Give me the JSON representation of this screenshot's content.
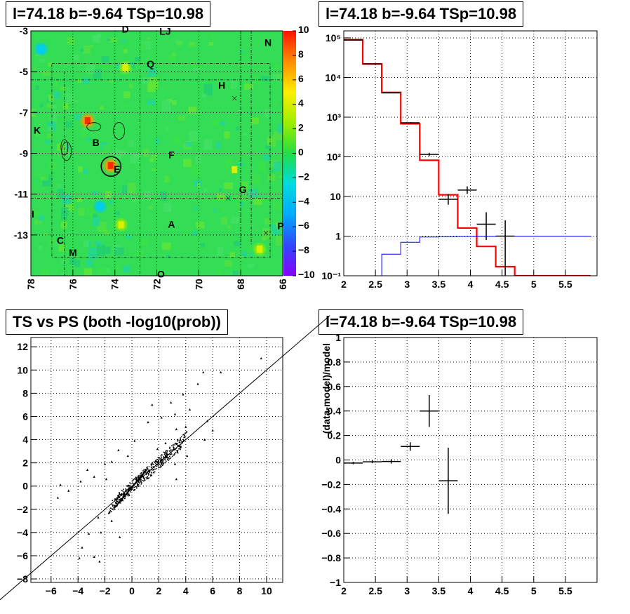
{
  "titles": {
    "map": "l=74.18 b=-9.64 TSp=10.98",
    "spectrum": "l=74.18 b=-9.64 TSp=10.98",
    "scatter": "TS vs PS (both -log10(prob))",
    "residual": "l=74.18 b=-9.64 TSp=10.98"
  },
  "chart_data": [
    {
      "type": "heatmap",
      "title": "l=74.18 b=-9.64 TSp=10.98",
      "x_ticks": [
        "78",
        "76",
        "74",
        "72",
        "70",
        "68",
        "66"
      ],
      "y_ticks": [
        "-3",
        "-5",
        "-7",
        "-9",
        "-11",
        "-13"
      ],
      "xlim": [
        78,
        66
      ],
      "ylim": [
        -15,
        -3
      ],
      "colorbar": {
        "range": [
          -10,
          10
        ],
        "ticks": [
          "10",
          "8",
          "6",
          "4",
          "2",
          "0",
          "−2",
          "−4",
          "−6",
          "−8",
          "−10"
        ]
      },
      "source_labels": [
        {
          "text": "D",
          "l": 73.5,
          "b": -2.95
        },
        {
          "text": "LJ",
          "l": 71.6,
          "b": -3.05
        },
        {
          "text": "N",
          "l": 66.7,
          "b": -3.6
        },
        {
          "text": "Q",
          "l": 72.3,
          "b": -4.65
        },
        {
          "text": "H",
          "l": 68.9,
          "b": -5.7
        },
        {
          "text": "K",
          "l": 77.7,
          "b": -7.9
        },
        {
          "text": "B",
          "l": 74.9,
          "b": -8.5
        },
        {
          "text": "F",
          "l": 71.3,
          "b": -9.1
        },
        {
          "text": "E",
          "l": 73.9,
          "b": -9.8
        },
        {
          "text": "G",
          "l": 67.9,
          "b": -10.8
        },
        {
          "text": "I",
          "l": 77.9,
          "b": -12.0
        },
        {
          "text": "A",
          "l": 71.3,
          "b": -12.5
        },
        {
          "text": "P",
          "l": 66.1,
          "b": -12.6
        },
        {
          "text": "C",
          "l": 76.6,
          "b": -13.3
        },
        {
          "text": "M",
          "l": 76.0,
          "b": -13.9
        },
        {
          "text": "O",
          "l": 71.8,
          "b": -14.95
        }
      ],
      "hotspots": [
        {
          "l": 75.3,
          "b": -7.4,
          "value": 8
        },
        {
          "l": 74.2,
          "b": -9.6,
          "value": 8
        },
        {
          "l": 73.5,
          "b": -4.8,
          "value": 4
        },
        {
          "l": 73.7,
          "b": -12.5,
          "value": 4
        },
        {
          "l": 67.1,
          "b": -13.7,
          "value": 4
        },
        {
          "l": 74.7,
          "b": -11.6,
          "value": -3
        },
        {
          "l": 77.5,
          "b": -3.9,
          "value": -3
        },
        {
          "l": 68.3,
          "b": -9.8,
          "value": 3
        }
      ],
      "marker_circle": {
        "l": 74.18,
        "b": -9.64
      }
    },
    {
      "type": "line",
      "title": "l=74.18 b=-9.64 TSp=10.98",
      "yscale": "log",
      "xlim": [
        2,
        6
      ],
      "ylim": [
        0.1,
        150000
      ],
      "x_ticks": [
        "2",
        "2.5",
        "3",
        "3.5",
        "4",
        "4.5",
        "5",
        "5.5"
      ],
      "y_ticks": [
        "10⁻¹",
        "1",
        "10",
        "10²",
        "10³",
        "10⁴",
        "10⁵"
      ],
      "bin_edges": [
        2.0,
        2.3,
        2.6,
        2.9,
        3.2,
        3.5,
        3.8,
        4.1,
        4.4,
        4.7,
        5.0,
        5.3,
        5.6,
        5.9
      ],
      "series": [
        {
          "kind": "model",
          "color": "#ff0000",
          "values": [
            90000,
            22000,
            4200,
            680,
            82,
            11,
            1.6,
            0.55,
            0.17,
            0.1,
            0.1,
            0.1,
            0.1
          ]
        },
        {
          "kind": "background",
          "color": "#0000ff",
          "values": [
            0.1,
            0.1,
            0.35,
            0.7,
            0.95,
            0.97,
            0.98,
            0.99,
            1.0,
            1.0,
            1.0,
            1.0,
            1.0
          ]
        }
      ],
      "data_points": [
        {
          "x": 2.15,
          "y": 88000,
          "lo": 87000,
          "hi": 89000
        },
        {
          "x": 2.45,
          "y": 22000,
          "lo": 21500,
          "hi": 22500
        },
        {
          "x": 2.75,
          "y": 4100,
          "lo": 4000,
          "hi": 4200
        },
        {
          "x": 3.05,
          "y": 720,
          "lo": 690,
          "hi": 750
        },
        {
          "x": 3.35,
          "y": 115,
          "lo": 104,
          "hi": 126
        },
        {
          "x": 3.65,
          "y": 8.5,
          "lo": 6.2,
          "hi": 11.5
        },
        {
          "x": 3.95,
          "y": 14.5,
          "lo": 11.6,
          "hi": 18
        },
        {
          "x": 4.25,
          "y": 2,
          "lo": 0.8,
          "hi": 4
        },
        {
          "x": 4.55,
          "y": 1,
          "lo": 0.1,
          "hi": 2.5
        }
      ]
    },
    {
      "type": "scatter",
      "title": "TS vs PS (both -log10(prob))",
      "xlim": [
        -7.5,
        11.2
      ],
      "ylim": [
        -8.3,
        12.8
      ],
      "x_ticks": [
        "−6",
        "−4",
        "−2",
        "0",
        "2",
        "4",
        "6",
        "8",
        "10"
      ],
      "y_ticks": [
        "−8",
        "−6",
        "−4",
        "−2",
        "0",
        "2",
        "4",
        "6",
        "8",
        "10",
        "12"
      ],
      "reference_line": {
        "slope": 1,
        "intercept": 0
      },
      "outliers": [
        [
          9.6,
          11.0
        ],
        [
          6.6,
          9.8
        ],
        [
          5.3,
          9.8
        ],
        [
          4.9,
          8.8
        ],
        [
          3.8,
          7.9
        ],
        [
          2.9,
          7.2
        ],
        [
          1.5,
          7.0
        ],
        [
          4.3,
          6.6
        ],
        [
          3.2,
          6.2
        ],
        [
          5.6,
          5.6
        ],
        [
          2.2,
          5.9
        ],
        [
          4.0,
          5.1
        ],
        [
          3.3,
          4.9
        ],
        [
          1.2,
          5.5
        ],
        [
          2.5,
          3.7
        ],
        [
          3.6,
          4.0
        ],
        [
          1.9,
          3.2
        ],
        [
          3.4,
          2.9
        ],
        [
          4.1,
          2.6
        ],
        [
          3.2,
          1.9
        ],
        [
          3.3,
          0.6
        ],
        [
          -3.3,
          1.4
        ],
        [
          -3.8,
          0.4
        ],
        [
          -2.0,
          1.9
        ],
        [
          -5.5,
          -1.0
        ],
        [
          -5.3,
          0.1
        ],
        [
          -4.7,
          -0.4
        ],
        [
          -2.8,
          0.8
        ],
        [
          -2.5,
          -2.7
        ],
        [
          -2.3,
          -4.0
        ],
        [
          -3.2,
          -4.1
        ],
        [
          -3.7,
          -5.3
        ],
        [
          -2.8,
          -6.1
        ],
        [
          -3.9,
          -6.2
        ],
        [
          -2.4,
          -6.5
        ],
        [
          -1.5,
          -3.0
        ],
        [
          -0.9,
          -4.4
        ],
        [
          -1.7,
          -2.3
        ],
        [
          0.2,
          3.9
        ],
        [
          -1.0,
          3.1
        ],
        [
          -0.3,
          2.6
        ],
        [
          -1.9,
          0.6
        ],
        [
          -1.5,
          2.1
        ],
        [
          5.4,
          4.0
        ],
        [
          6.0,
          4.8
        ]
      ]
    },
    {
      "type": "scatter",
      "title": "l=74.18 b=-9.64 TSp=10.98",
      "ylabel": "(data-model)/model",
      "xlim": [
        2,
        6
      ],
      "ylim": [
        -1,
        1
      ],
      "x_ticks": [
        "2",
        "2.5",
        "3",
        "3.5",
        "4",
        "4.5",
        "5",
        "5.5"
      ],
      "y_ticks": [
        "−1",
        "−0.8",
        "−0.6",
        "−0.4",
        "−0.2",
        "0",
        "0.2",
        "0.4",
        "0.6",
        "0.8",
        "1"
      ],
      "points": [
        {
          "x": 2.15,
          "y": -0.025,
          "xerr": 0.15,
          "yerr": 0.01
        },
        {
          "x": 2.45,
          "y": -0.015,
          "xerr": 0.15,
          "yerr": 0.012
        },
        {
          "x": 2.75,
          "y": -0.012,
          "xerr": 0.15,
          "yerr": 0.018
        },
        {
          "x": 3.05,
          "y": 0.11,
          "xerr": 0.15,
          "yerr": 0.035
        },
        {
          "x": 3.35,
          "y": 0.4,
          "xerr": 0.15,
          "yerr": 0.13
        },
        {
          "x": 3.65,
          "y": -0.17,
          "xerr": 0.15,
          "yerr": 0.27
        }
      ]
    }
  ]
}
